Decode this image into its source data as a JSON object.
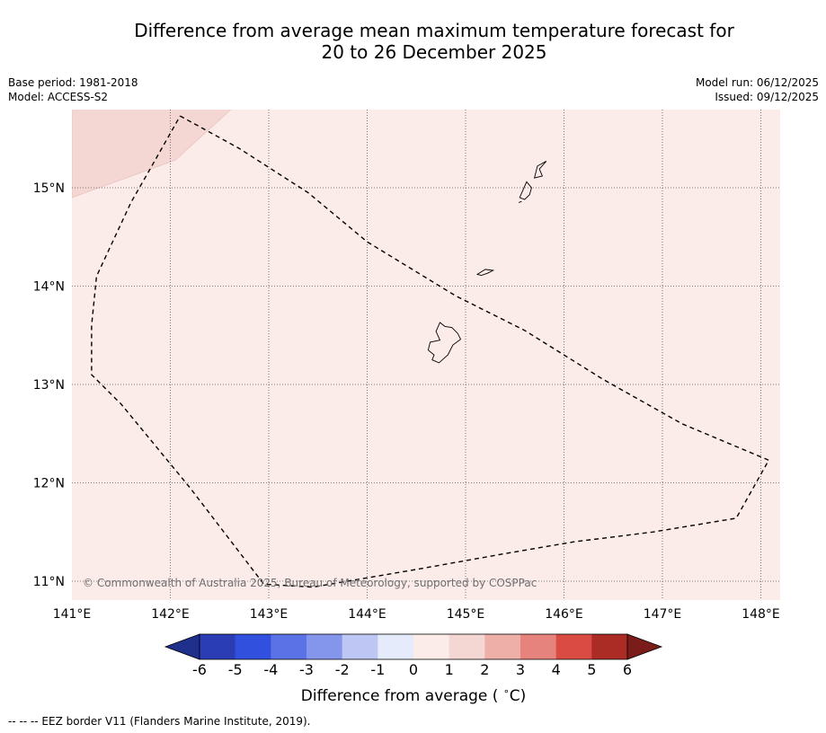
{
  "title_line1": "Difference from average mean maximum temperature forecast for",
  "title_line2": "20 to 26 December 2025",
  "base_period": "Base period: 1981-2018",
  "model": "Model: ACCESS-S2",
  "model_run": "Model run: 06/12/2025",
  "issued": "Issued: 09/12/2025",
  "copyright": "© Commonwealth of Australia 2025, Bureau of Meteorology, supported by COSPPac",
  "footnote": "-- -- -- EEZ border V11 (Flanders Marine Institute, 2019).",
  "map": {
    "lon_range": [
      141.0,
      148.2
    ],
    "lat_range": [
      10.8,
      15.8
    ],
    "lon_ticks": [
      {
        "value": 141,
        "label": "141°E"
      },
      {
        "value": 142,
        "label": "142°E"
      },
      {
        "value": 143,
        "label": "143°E"
      },
      {
        "value": 144,
        "label": "144°E"
      },
      {
        "value": 145,
        "label": "145°E"
      },
      {
        "value": 146,
        "label": "146°E"
      },
      {
        "value": 147,
        "label": "147°E"
      },
      {
        "value": 148,
        "label": "148°E"
      }
    ],
    "lat_ticks": [
      {
        "value": 15,
        "label": "15°N"
      },
      {
        "value": 14,
        "label": "14°N"
      },
      {
        "value": 13,
        "label": "13°N"
      },
      {
        "value": 12,
        "label": "12°N"
      },
      {
        "value": 11,
        "label": "11°N"
      }
    ],
    "background_category": "0 to 1",
    "background_color": "#fbebe9",
    "anomaly_region": {
      "category": "1 to 2",
      "color": "#f4d7d3",
      "lonlat": [
        [
          141.0,
          15.8
        ],
        [
          142.62,
          15.8
        ],
        [
          142.05,
          15.28
        ],
        [
          141.0,
          14.9
        ]
      ]
    },
    "eez_border_lonlat": [
      [
        142.1,
        15.73
      ],
      [
        142.7,
        15.4
      ],
      [
        143.4,
        14.95
      ],
      [
        144.0,
        14.45
      ],
      [
        144.9,
        13.9
      ],
      [
        145.6,
        13.55
      ],
      [
        146.4,
        13.05
      ],
      [
        147.2,
        12.6
      ],
      [
        148.08,
        12.23
      ],
      [
        147.75,
        11.64
      ],
      [
        146.9,
        11.5
      ],
      [
        146.1,
        11.4
      ],
      [
        145.4,
        11.28
      ],
      [
        144.5,
        11.12
      ],
      [
        143.8,
        11.0
      ],
      [
        143.45,
        10.94
      ],
      [
        142.95,
        10.97
      ],
      [
        142.2,
        11.95
      ],
      [
        141.5,
        12.8
      ],
      [
        141.2,
        13.1
      ],
      [
        141.2,
        13.6
      ],
      [
        141.25,
        14.1
      ],
      [
        141.6,
        14.85
      ],
      [
        141.8,
        15.2
      ],
      [
        142.1,
        15.73
      ]
    ],
    "islands": [
      {
        "name": "Guam",
        "lonlat": [
          [
            144.74,
            13.63
          ],
          [
            144.79,
            13.59
          ],
          [
            144.86,
            13.58
          ],
          [
            144.92,
            13.52
          ],
          [
            144.95,
            13.46
          ],
          [
            144.87,
            13.4
          ],
          [
            144.82,
            13.3
          ],
          [
            144.73,
            13.22
          ],
          [
            144.66,
            13.25
          ],
          [
            144.68,
            13.3
          ],
          [
            144.62,
            13.35
          ],
          [
            144.64,
            13.43
          ],
          [
            144.74,
            13.45
          ],
          [
            144.7,
            13.54
          ]
        ]
      },
      {
        "name": "Rota",
        "lonlat": [
          [
            145.12,
            14.12
          ],
          [
            145.2,
            14.17
          ],
          [
            145.28,
            14.16
          ],
          [
            145.22,
            14.13
          ],
          [
            145.16,
            14.11
          ]
        ]
      },
      {
        "name": "Tinian",
        "lonlat": [
          [
            145.55,
            14.9
          ],
          [
            145.62,
            15.06
          ],
          [
            145.67,
            15.0
          ],
          [
            145.65,
            14.93
          ],
          [
            145.6,
            14.88
          ]
        ]
      },
      {
        "name": "Saipan",
        "lonlat": [
          [
            145.7,
            15.1
          ],
          [
            145.73,
            15.22
          ],
          [
            145.82,
            15.27
          ],
          [
            145.75,
            15.19
          ],
          [
            145.78,
            15.12
          ]
        ]
      },
      {
        "name": "Aguijan",
        "lonlat": [
          [
            145.54,
            14.85
          ],
          [
            145.57,
            14.86
          ]
        ]
      }
    ]
  },
  "colorbar": {
    "title": "Difference from average ( C)",
    "title_main": "Difference from average (",
    "title_unit": "C)",
    "degree_symbol": "∘",
    "min": -6,
    "max": 6,
    "step": 1,
    "tick_labels": [
      "-6",
      "-5",
      "-4",
      "-3",
      "-2",
      "-1",
      "0",
      "1",
      "2",
      "3",
      "4",
      "5",
      "6"
    ],
    "under_color": "#1f2f8c",
    "over_color": "#7a1d1a",
    "bin_colors": [
      "#2a3db5",
      "#3150de",
      "#5a72e6",
      "#8496ec",
      "#bec6f4",
      "#e6ebfb",
      "#fbebe9",
      "#f4d7d3",
      "#eeafa9",
      "#e6837d",
      "#da4b44",
      "#ab2c24"
    ]
  }
}
